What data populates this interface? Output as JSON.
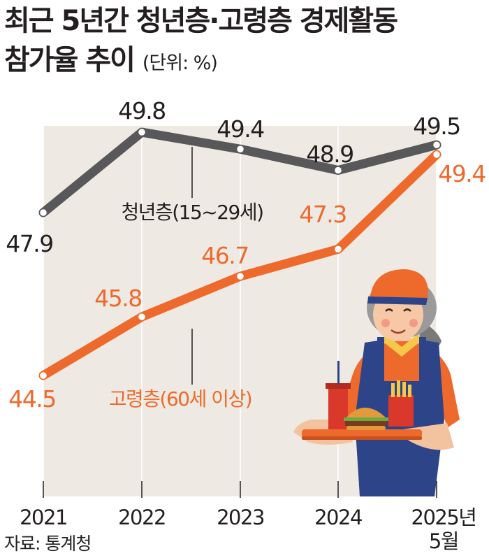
{
  "title_line1": "최근 5년간 청년층·고령층 경제활동",
  "title_line2": "참가율 추이",
  "unit": "(단위: %)",
  "source": "자료: 통계청",
  "chart_data": {
    "type": "line",
    "categories": [
      "2021",
      "2022",
      "2023",
      "2024",
      "2025년 5월"
    ],
    "series": [
      {
        "name": "청년층(15~29세)",
        "values": [
          47.9,
          49.8,
          49.4,
          48.9,
          49.5
        ],
        "color": "#58585a"
      },
      {
        "name": "고령층(60세 이상)",
        "values": [
          44.5,
          45.8,
          46.7,
          47.3,
          49.4
        ],
        "color": "#ee6a2c"
      }
    ],
    "label_colors": {
      "youth": "#231f20",
      "elderly": "#ee6a2c"
    },
    "background_color": "#eeeae3",
    "grid": true
  }
}
